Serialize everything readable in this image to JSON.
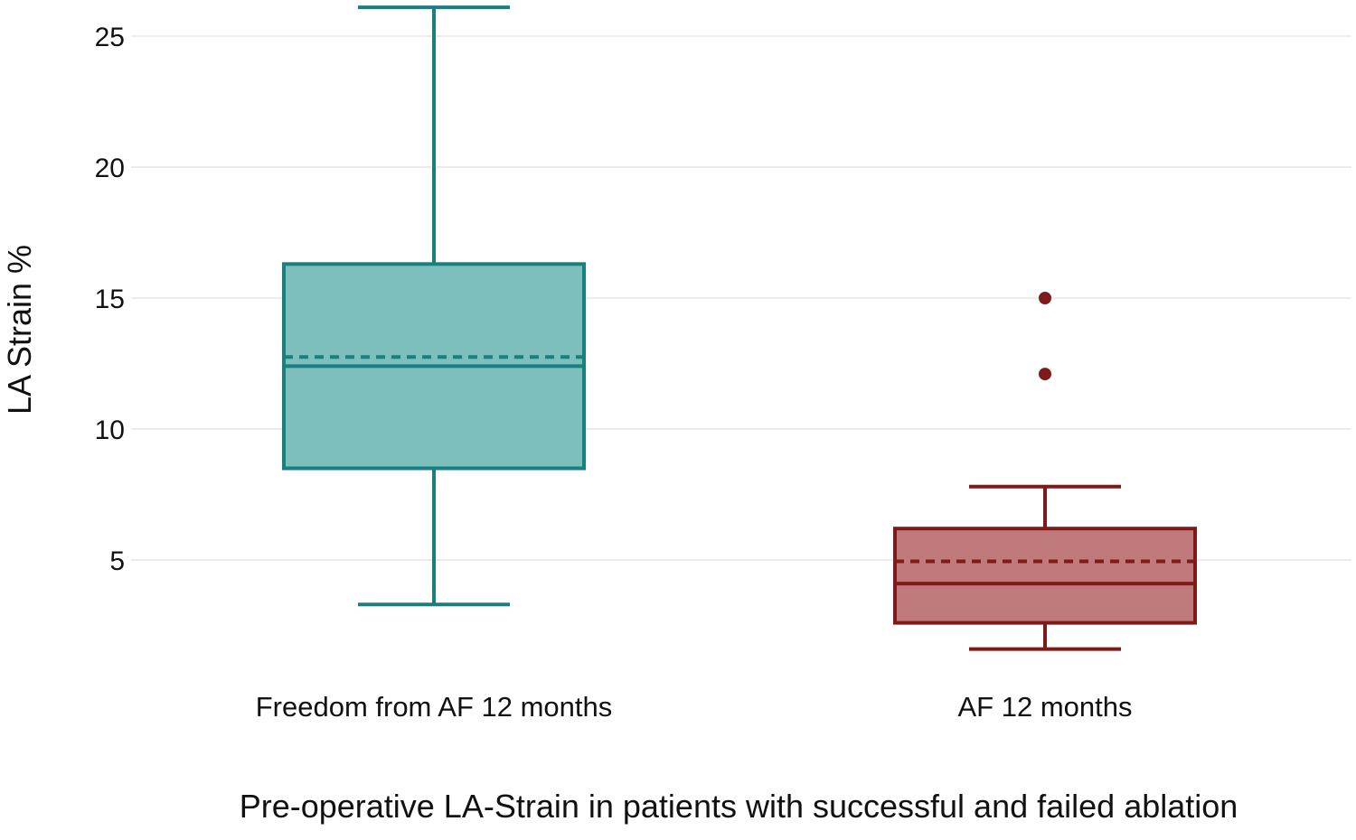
{
  "chart_data": {
    "type": "box",
    "title": "",
    "xlabel": "Pre-operative LA-Strain in patients with successful and failed ablation",
    "ylabel": "LA Strain %",
    "ylim": [
      0.5,
      26.2
    ],
    "yticks": [
      5,
      10,
      15,
      20,
      25
    ],
    "ytick_labels": [
      "5",
      "10",
      "15",
      "20",
      "25"
    ],
    "grid": true,
    "series": [
      {
        "name": "Freedom from AF 12 months",
        "color": "#1a7f7f",
        "fill": "#7dbfbd",
        "whisker_low": 3.3,
        "q1": 8.5,
        "median": 12.4,
        "mean": 12.75,
        "q3": 16.3,
        "whisker_high": 26.1,
        "outliers": []
      },
      {
        "name": "AF 12 months",
        "color": "#7f1a1a",
        "fill": "#c17a7b",
        "whisker_low": 1.6,
        "q1": 2.6,
        "median": 4.1,
        "mean": 4.95,
        "q3": 6.2,
        "whisker_high": 7.8,
        "outliers": [
          15.0,
          12.1
        ]
      }
    ]
  }
}
